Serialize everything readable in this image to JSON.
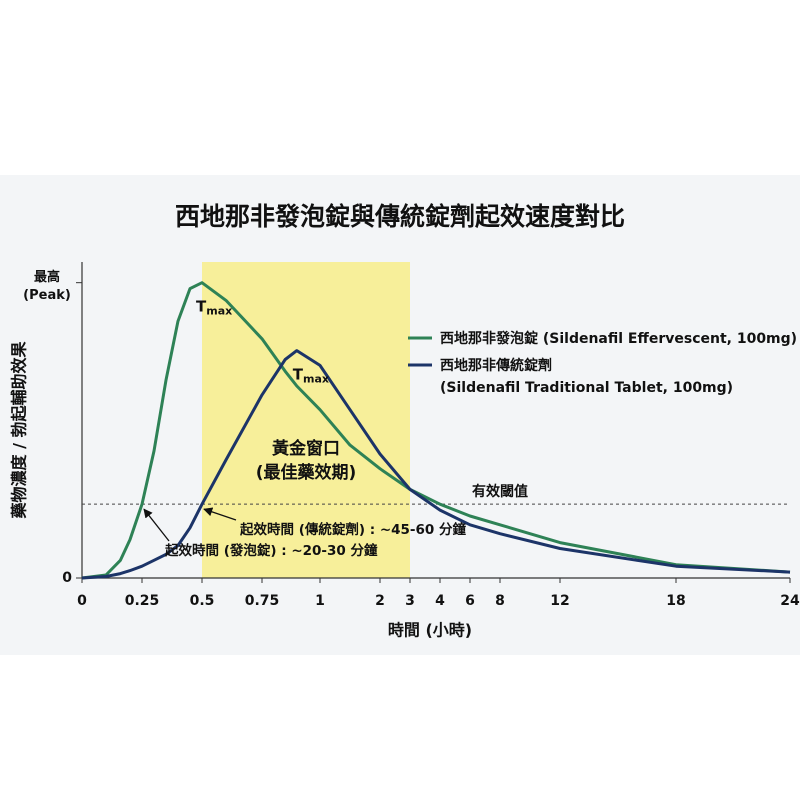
{
  "chart_data": {
    "type": "line",
    "title": "西地那非發泡錠與傳統錠劑起效速度對比",
    "x_label": "時間 (小時)",
    "y_label": "藥物濃度 / 勃起輔助效果",
    "x": [
      0,
      0.1,
      0.16,
      0.2,
      0.25,
      0.3,
      0.35,
      0.4,
      0.45,
      0.5,
      0.6,
      0.75,
      0.85,
      0.9,
      1,
      1.5,
      2,
      3,
      4,
      6,
      8,
      12,
      18,
      24
    ],
    "series": [
      {
        "name": "西地那非發泡錠 (Sildenafil Effervescent, 100mg)",
        "color": "#2e8256",
        "values": [
          0,
          1,
          6,
          13,
          25,
          43,
          67,
          87,
          98,
          100,
          94,
          81,
          70,
          65,
          57,
          45,
          37,
          30,
          25,
          21,
          18,
          12,
          4.5,
          2
        ]
      },
      {
        "name": "西地那非傳統錠劑\n(Sildenafil Traditional Tablet, 100mg)",
        "color": "#1c3468",
        "values": [
          0,
          0.5,
          1.5,
          2.5,
          4,
          6,
          8,
          11,
          17,
          25,
          40,
          62,
          74,
          77,
          72,
          57,
          42,
          30,
          23,
          18,
          15,
          10,
          4,
          2
        ]
      }
    ],
    "xlim": [
      0,
      24
    ],
    "xticks": [
      0,
      0.25,
      0.5,
      0.75,
      1,
      2,
      3,
      4,
      6,
      8,
      12,
      18,
      24
    ],
    "ylim": [
      0,
      107
    ],
    "yticks": [
      0,
      {
        "value": 100,
        "label": "最高\n(Peak)"
      }
    ],
    "highlight": {
      "from": 0.5,
      "to": 3,
      "color": "#f7ef9a",
      "label": "黃金窗口\n(最佳藥效期)"
    },
    "threshold": {
      "value": 25,
      "label": "有效閾值"
    },
    "peak_label": {
      "main": "T",
      "sub": "max"
    },
    "onset_labels": [
      "起效時間 (發泡錠) : ~20-30 分鐘",
      "起效時間 (傳統錠劑) : ~45-60 分鐘"
    ],
    "legend": "right"
  }
}
